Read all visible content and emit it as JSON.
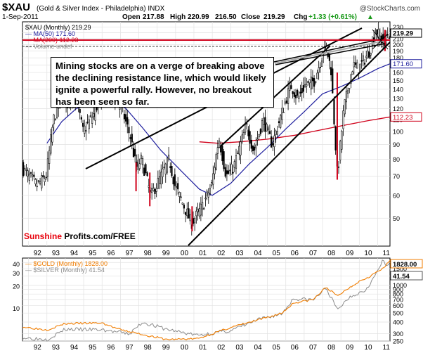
{
  "header": {
    "symbol": "$XAU",
    "name": "(Gold & Silver Index - Philadelphia) INDX",
    "date": "1-Sep-2011",
    "open_label": "Open",
    "open": "217.88",
    "high_label": "High",
    "high": "220.99",
    "low": "216.50",
    "close_label": "Close",
    "close": "219.29",
    "chg_label": "Chg",
    "chg": "+1.33 (+0.61%)",
    "chg_arrow": "▲",
    "copyright": "@StockCharts.com"
  },
  "legend_top": [
    {
      "text": "$XAU (Monthly) 219.29",
      "color": "#000000"
    },
    {
      "text": "MA(50) 171.60",
      "color": "#1f1f9e"
    },
    {
      "text": "MA(200) 112.23",
      "color": "#d0001a"
    },
    {
      "text": "Volume undef",
      "color": "#888888"
    }
  ],
  "legend_bottom": [
    {
      "text": "$GOLD (Monthly) 1828.00",
      "color": "#f07d00"
    },
    {
      "text": "$SILVER (Monthly) 41.54",
      "color": "#8c8c8c"
    }
  ],
  "annotation": "Mining stocks are on a verge of breaking above the declining resistance line, which would likely ignite a powerful rally. However, no breakout has been seen so far.",
  "brand": {
    "part1": "Sunshine",
    "part2": " Profits.com/FREE"
  },
  "colors": {
    "price": "#000000",
    "ma50": "#1f1f9e",
    "ma200": "#d0001a",
    "gold": "#f07d00",
    "silver": "#8c8c8c",
    "resistance": "#d0001a"
  },
  "chart_data": [
    {
      "type": "candlestick",
      "title": "$XAU (Gold & Silver Index - Philadelphia) INDX",
      "scale": "log",
      "ylim": [
        40,
        240
      ],
      "y_ticks": [
        50,
        60,
        70,
        80,
        90,
        100,
        110,
        120,
        130,
        140,
        150,
        160,
        170,
        180,
        190,
        200,
        210,
        220,
        230
      ],
      "x_ticks": [
        "92",
        "93",
        "94",
        "95",
        "96",
        "97",
        "98",
        "99",
        "00",
        "01",
        "02",
        "03",
        "04",
        "05",
        "06",
        "07",
        "08",
        "09",
        "10",
        "11"
      ],
      "x_start": 1991.67,
      "x_end": 2011.67,
      "price_path": [
        [
          1991.67,
          75
        ],
        [
          1992.5,
          65
        ],
        [
          1993.0,
          70
        ],
        [
          1993.4,
          110
        ],
        [
          1993.8,
          130
        ],
        [
          1994.2,
          125
        ],
        [
          1994.6,
          135
        ],
        [
          1995.0,
          100
        ],
        [
          1995.6,
          115
        ],
        [
          1996.1,
          140
        ],
        [
          1996.5,
          135
        ],
        [
          1996.9,
          125
        ],
        [
          1997.2,
          115
        ],
        [
          1997.6,
          95
        ],
        [
          1997.9,
          75
        ],
        [
          1998.2,
          80
        ],
        [
          1998.7,
          60
        ],
        [
          1999.0,
          65
        ],
        [
          1999.7,
          80
        ],
        [
          2000.0,
          65
        ],
        [
          2000.5,
          55
        ],
        [
          2000.9,
          48
        ],
        [
          2001.5,
          55
        ],
        [
          2002.0,
          65
        ],
        [
          2002.4,
          95
        ],
        [
          2002.8,
          70
        ],
        [
          2003.2,
          75
        ],
        [
          2003.9,
          105
        ],
        [
          2004.3,
          85
        ],
        [
          2004.8,
          110
        ],
        [
          2005.3,
          90
        ],
        [
          2005.9,
          120
        ],
        [
          2006.3,
          145
        ],
        [
          2006.7,
          130
        ],
        [
          2007.1,
          145
        ],
        [
          2007.6,
          150
        ],
        [
          2008.2,
          200
        ],
        [
          2008.5,
          165
        ],
        [
          2008.85,
          70
        ],
        [
          2009.2,
          120
        ],
        [
          2009.7,
          170
        ],
        [
          2010.0,
          165
        ],
        [
          2010.6,
          190
        ],
        [
          2010.95,
          225
        ],
        [
          2011.3,
          205
        ],
        [
          2011.6,
          219
        ]
      ],
      "series": [
        {
          "name": "MA(50)",
          "last": 171.6,
          "points": [
            [
              1993.0,
              91
            ],
            [
              1993.8,
              108
            ],
            [
              1994.6,
              120
            ],
            [
              1995.6,
              126
            ],
            [
              1996.5,
              128
            ],
            [
              1997.3,
              120
            ],
            [
              1998.2,
              103
            ],
            [
              1999.2,
              86
            ],
            [
              2000.3,
              73
            ],
            [
              2001.3,
              63
            ],
            [
              2002.0,
              60
            ],
            [
              2003.0,
              66
            ],
            [
              2004.0,
              77
            ],
            [
              2005.0,
              88
            ],
            [
              2006.0,
              102
            ],
            [
              2007.0,
              117
            ],
            [
              2008.0,
              135
            ],
            [
              2009.0,
              143
            ],
            [
              2010.0,
              153
            ],
            [
              2011.0,
              165
            ],
            [
              2011.67,
              171.6
            ]
          ]
        },
        {
          "name": "MA(200)",
          "last": 112.23,
          "points": [
            [
              2001.3,
              92
            ],
            [
              2002.3,
              91
            ],
            [
              2003.5,
              92
            ],
            [
              2005.0,
              94
            ],
            [
              2006.5,
              97
            ],
            [
              2007.5,
              100
            ],
            [
              2008.5,
              103
            ],
            [
              2009.5,
              106
            ],
            [
              2010.5,
              109
            ],
            [
              2011.67,
              112.23
            ]
          ]
        }
      ],
      "last_labels": [
        219.29,
        171.6,
        112.23
      ]
    },
    {
      "type": "line",
      "scale": "log",
      "series": [
        {
          "name": "$GOLD (Monthly)",
          "last": 1828.0,
          "points": [
            [
              1991.67,
              355
            ],
            [
              1993.0,
              330
            ],
            [
              1994.0,
              385
            ],
            [
              1996.0,
              390
            ],
            [
              1997.0,
              330
            ],
            [
              1999.5,
              260
            ],
            [
              2001.2,
              265
            ],
            [
              2003.0,
              350
            ],
            [
              2004.5,
              420
            ],
            [
              2005.8,
              500
            ],
            [
              2006.4,
              640
            ],
            [
              2007.5,
              700
            ],
            [
              2008.2,
              950
            ],
            [
              2008.8,
              760
            ],
            [
              2009.5,
              950
            ],
            [
              2010.0,
              1100
            ],
            [
              2010.6,
              1250
            ],
            [
              2011.0,
              1400
            ],
            [
              2011.3,
              1500
            ],
            [
              2011.67,
              1828
            ]
          ]
        },
        {
          "name": "$SILVER (Monthly)",
          "last": 41.54,
          "points": [
            [
              1991.67,
              4.0
            ],
            [
              1993.0,
              3.8
            ],
            [
              1994.0,
              5.2
            ],
            [
              1996.0,
              5.1
            ],
            [
              1997.5,
              4.5
            ],
            [
              1998.2,
              6.5
            ],
            [
              1999.5,
              5.2
            ],
            [
              2001.2,
              4.3
            ],
            [
              2003.0,
              5.0
            ],
            [
              2004.5,
              7.0
            ],
            [
              2005.8,
              8.5
            ],
            [
              2006.4,
              13.5
            ],
            [
              2007.5,
              13.0
            ],
            [
              2008.2,
              19.0
            ],
            [
              2008.8,
              9.5
            ],
            [
              2009.5,
              14.5
            ],
            [
              2010.3,
              17.5
            ],
            [
              2010.8,
              26.0
            ],
            [
              2011.3,
              45.0
            ],
            [
              2011.5,
              36.0
            ],
            [
              2011.67,
              41.54
            ]
          ]
        }
      ],
      "left_ticks": [
        10,
        20,
        30,
        40
      ],
      "right_ticks": [
        250,
        300,
        400,
        500,
        600,
        700,
        800,
        900,
        1000,
        1250,
        1500,
        1750
      ]
    }
  ]
}
